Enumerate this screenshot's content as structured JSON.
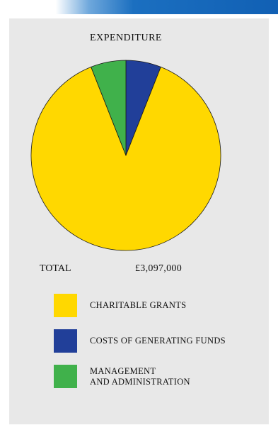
{
  "chart_data": {
    "type": "pie",
    "title": "EXPENDITURE",
    "total_label": "TOTAL",
    "total_value": "£3,097,000",
    "slices": [
      {
        "label": "COSTS OF GENERATING FUNDS",
        "fraction": 0.06,
        "color": "#213f99"
      },
      {
        "label": "CHARITABLE GRANTS",
        "fraction": 0.88,
        "color": "#ffd800"
      },
      {
        "label": "MANAGEMENT\nAND ADMINISTRATION",
        "fraction": 0.06,
        "color": "#40b14b"
      }
    ],
    "legend": [
      {
        "label": "CHARITABLE GRANTS",
        "color": "#ffd800"
      },
      {
        "label": "COSTS OF GENERATING FUNDS",
        "color": "#213f99"
      },
      {
        "label": "MANAGEMENT\nAND ADMINISTRATION",
        "color": "#40b14b"
      }
    ]
  }
}
